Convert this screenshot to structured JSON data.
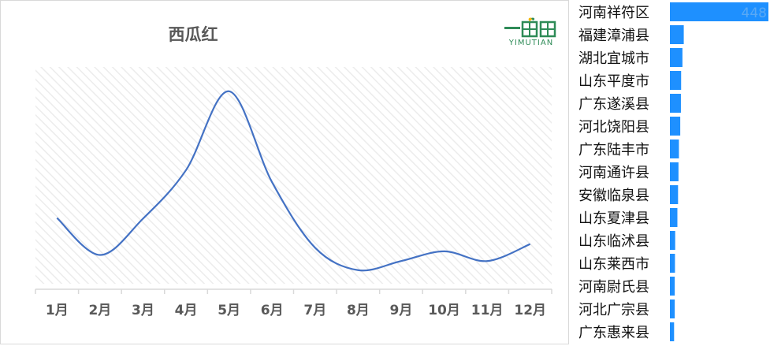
{
  "line_chart": {
    "title": "西瓜红",
    "logo_text": "YIMUTIAN",
    "line_color": "#4472c4"
  },
  "bar_chart": {
    "bar_color": "#1e90ff",
    "top_value_label": "448"
  },
  "chart_data": [
    {
      "type": "line",
      "title": "西瓜红",
      "categories": [
        "1月",
        "2月",
        "3月",
        "4月",
        "5月",
        "6月",
        "7月",
        "8月",
        "9月",
        "10月",
        "11月",
        "12月"
      ],
      "series": [
        {
          "values": [
            91,
            30,
            90,
            170,
            300,
            150,
            42,
            5,
            20,
            36,
            20,
            48
          ]
        }
      ],
      "ylim": [
        -20,
        340
      ],
      "grid": true,
      "smooth": true
    },
    {
      "type": "bar",
      "orientation": "horizontal",
      "categories": [
        "河南祥符区",
        "福建漳浦县",
        "湖北宜城市",
        "山东平度市",
        "广东遂溪县",
        "河北饶阳县",
        "广东陆丰市",
        "河南通许县",
        "安徽临泉县",
        "山东夏津县",
        "山东临沭县",
        "山东莱西市",
        "河南尉氏县",
        "河北广宗县",
        "广东惠来县"
      ],
      "values": [
        448,
        63,
        57,
        51,
        50,
        47,
        41,
        39,
        37,
        34,
        24,
        23,
        22,
        22,
        19
      ],
      "data_labels": [
        "448"
      ]
    }
  ]
}
